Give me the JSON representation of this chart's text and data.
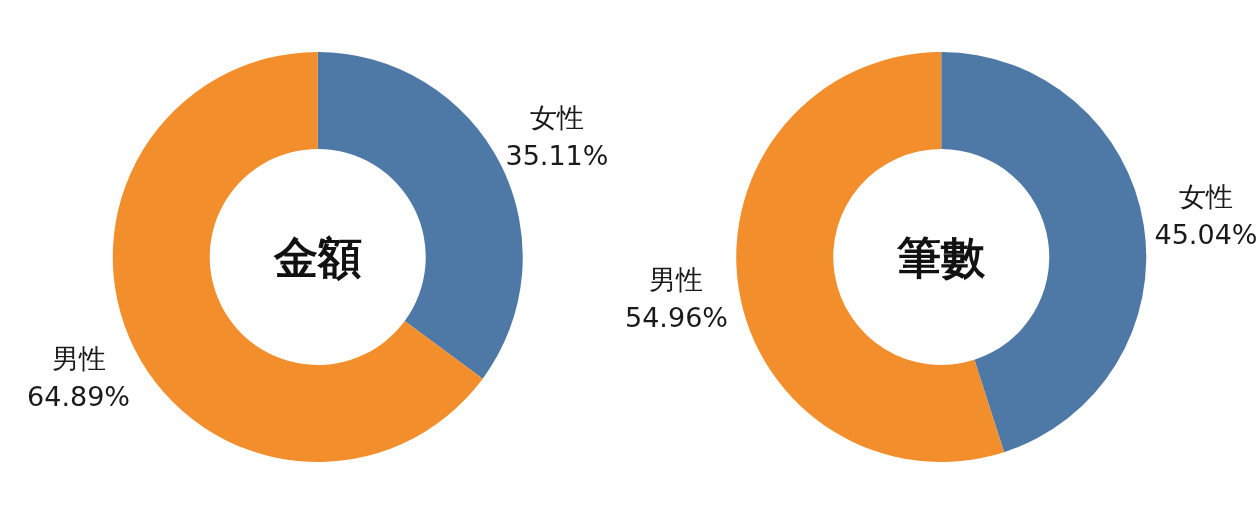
{
  "chart_data": [
    {
      "type": "donut",
      "title": "金額",
      "categories": [
        "女性",
        "男性"
      ],
      "values": [
        35.11,
        64.89
      ],
      "colors": [
        "#4e79a7",
        "#f28e2b"
      ],
      "value_labels": [
        "35.11%",
        "64.89%"
      ]
    },
    {
      "type": "donut",
      "title": "筆數",
      "categories": [
        "女性",
        "男性"
      ],
      "values": [
        45.04,
        54.96
      ],
      "colors": [
        "#4e79a7",
        "#f28e2b"
      ],
      "value_labels": [
        "45.04%",
        "54.96%"
      ]
    }
  ]
}
